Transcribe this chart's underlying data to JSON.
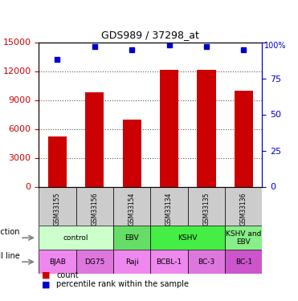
{
  "title": "GDS989 / 37298_at",
  "samples": [
    "GSM33155",
    "GSM33156",
    "GSM33154",
    "GSM33134",
    "GSM33135",
    "GSM33136"
  ],
  "counts": [
    5200,
    9800,
    7000,
    12100,
    12100,
    10000
  ],
  "percentiles": [
    88,
    97,
    95,
    98,
    97,
    95
  ],
  "percentile_max": 100,
  "ylim_left": [
    0,
    15000
  ],
  "ylim_right": [
    0,
    100
  ],
  "yticks_left": [
    0,
    3000,
    6000,
    9000,
    12000,
    15000
  ],
  "yticks_right": [
    0,
    25,
    50,
    75,
    100
  ],
  "bar_color": "#cc0000",
  "dot_color": "#0000cc",
  "infection_groups": [
    {
      "label": "control",
      "cols": [
        0,
        1
      ],
      "color": "#ccffcc"
    },
    {
      "label": "EBV",
      "cols": [
        2
      ],
      "color": "#66dd66"
    },
    {
      "label": "KSHV",
      "cols": [
        3,
        4
      ],
      "color": "#44ee44"
    },
    {
      "label": "KSHV and\nEBV",
      "cols": [
        5
      ],
      "color": "#88ee88"
    }
  ],
  "cell_line_groups": [
    {
      "label": "BJAB",
      "cols": [
        0
      ],
      "color": "#ee88ee"
    },
    {
      "label": "DG75",
      "cols": [
        1
      ],
      "color": "#dd77dd"
    },
    {
      "label": "Raji",
      "cols": [
        2
      ],
      "color": "#ee88ee"
    },
    {
      "label": "BCBL-1",
      "cols": [
        3
      ],
      "color": "#ee88ee"
    },
    {
      "label": "BC-3",
      "cols": [
        4
      ],
      "color": "#dd77dd"
    },
    {
      "label": "BC-1",
      "cols": [
        5
      ],
      "color": "#cc55cc"
    }
  ],
  "gsm_row_color": "#cccccc",
  "legend_count_color": "#cc0000",
  "legend_pct_color": "#0000cc",
  "dotted_line_color": "#555555",
  "left_axis_color": "#cc0000",
  "right_axis_color": "#0000cc"
}
